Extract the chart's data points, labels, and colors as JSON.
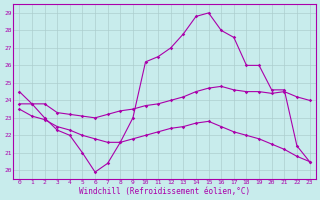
{
  "xlabel": "Windchill (Refroidissement éolien,°C)",
  "ylabel": "",
  "bg_color": "#c8ecec",
  "line_color": "#aa00aa",
  "grid_color": "#aaaaaa",
  "ylim": [
    19.5,
    29.5
  ],
  "xlim": [
    -0.5,
    23.5
  ],
  "yticks": [
    20,
    21,
    22,
    23,
    24,
    25,
    26,
    27,
    28,
    29
  ],
  "xticks": [
    0,
    1,
    2,
    3,
    4,
    5,
    6,
    7,
    8,
    9,
    10,
    11,
    12,
    13,
    14,
    15,
    16,
    17,
    18,
    19,
    20,
    21,
    22,
    23
  ],
  "series": [
    {
      "x": [
        0,
        1,
        2,
        3,
        4,
        5,
        6,
        7,
        8,
        9,
        10,
        11,
        12,
        13,
        14,
        15,
        16,
        17,
        18,
        19,
        20,
        21,
        22,
        23
      ],
      "y": [
        24.5,
        23.8,
        23.0,
        22.3,
        22.0,
        21.0,
        19.9,
        20.4,
        21.6,
        23.0,
        26.2,
        26.5,
        27.0,
        27.8,
        28.8,
        29.0,
        28.0,
        27.6,
        26.0,
        26.0,
        24.6,
        24.6,
        21.4,
        20.5
      ]
    },
    {
      "x": [
        0,
        1,
        2,
        3,
        4,
        5,
        6,
        7,
        8,
        9,
        10,
        11,
        12,
        13,
        14,
        15,
        16,
        17,
        18,
        19,
        20,
        21,
        22,
        23
      ],
      "y": [
        23.8,
        23.8,
        23.8,
        23.3,
        23.2,
        23.1,
        23.0,
        23.2,
        23.4,
        23.5,
        23.7,
        23.8,
        24.0,
        24.2,
        24.5,
        24.7,
        24.8,
        24.6,
        24.5,
        24.5,
        24.4,
        24.5,
        24.2,
        24.0
      ]
    },
    {
      "x": [
        0,
        1,
        2,
        3,
        4,
        5,
        6,
        7,
        8,
        9,
        10,
        11,
        12,
        13,
        14,
        15,
        16,
        17,
        18,
        19,
        20,
        21,
        22,
        23
      ],
      "y": [
        23.5,
        23.1,
        22.9,
        22.5,
        22.3,
        22.0,
        21.8,
        21.6,
        21.6,
        21.8,
        22.0,
        22.2,
        22.4,
        22.5,
        22.7,
        22.8,
        22.5,
        22.2,
        22.0,
        21.8,
        21.5,
        21.2,
        20.8,
        20.5
      ]
    }
  ]
}
